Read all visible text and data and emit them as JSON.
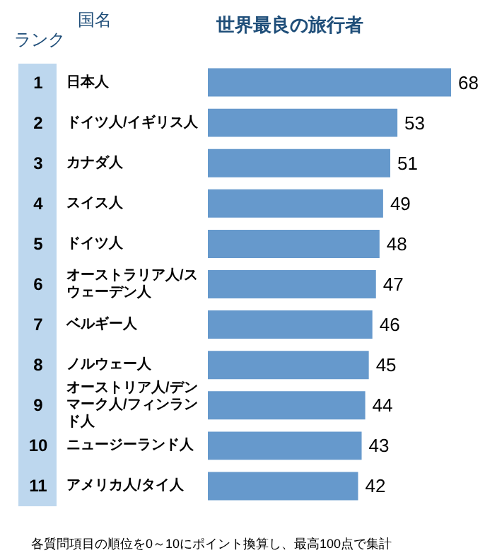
{
  "chart_data": {
    "type": "bar",
    "orientation": "horizontal",
    "title": "世界最良の旅行者",
    "ylabel": "国名",
    "categories": [
      "日本人",
      "ドイツ人/イギリス人",
      "カナダ人",
      "スイス人",
      "ドイツ人",
      "オーストラリア人/スウェーデン人",
      "ベルギー人",
      "ノルウェー人",
      "オーストリア人/デンマーク人/フィンランド人",
      "ニュージーランド人",
      "アメリカ人/タイ人"
    ],
    "values": [
      68,
      53,
      51,
      49,
      48,
      47,
      46,
      45,
      44,
      43,
      42
    ],
    "color": "#6699cc",
    "data_labels": true,
    "xlim": [
      0,
      68
    ],
    "tick_labels": "y",
    "annotations": [
      "ランク",
      "1",
      "2",
      "3",
      "4",
      "5",
      "6",
      "7",
      "8",
      "9",
      "10",
      "11",
      "各質問項目の順位を0～10にポイント換算し、最高100点で集計"
    ]
  }
}
